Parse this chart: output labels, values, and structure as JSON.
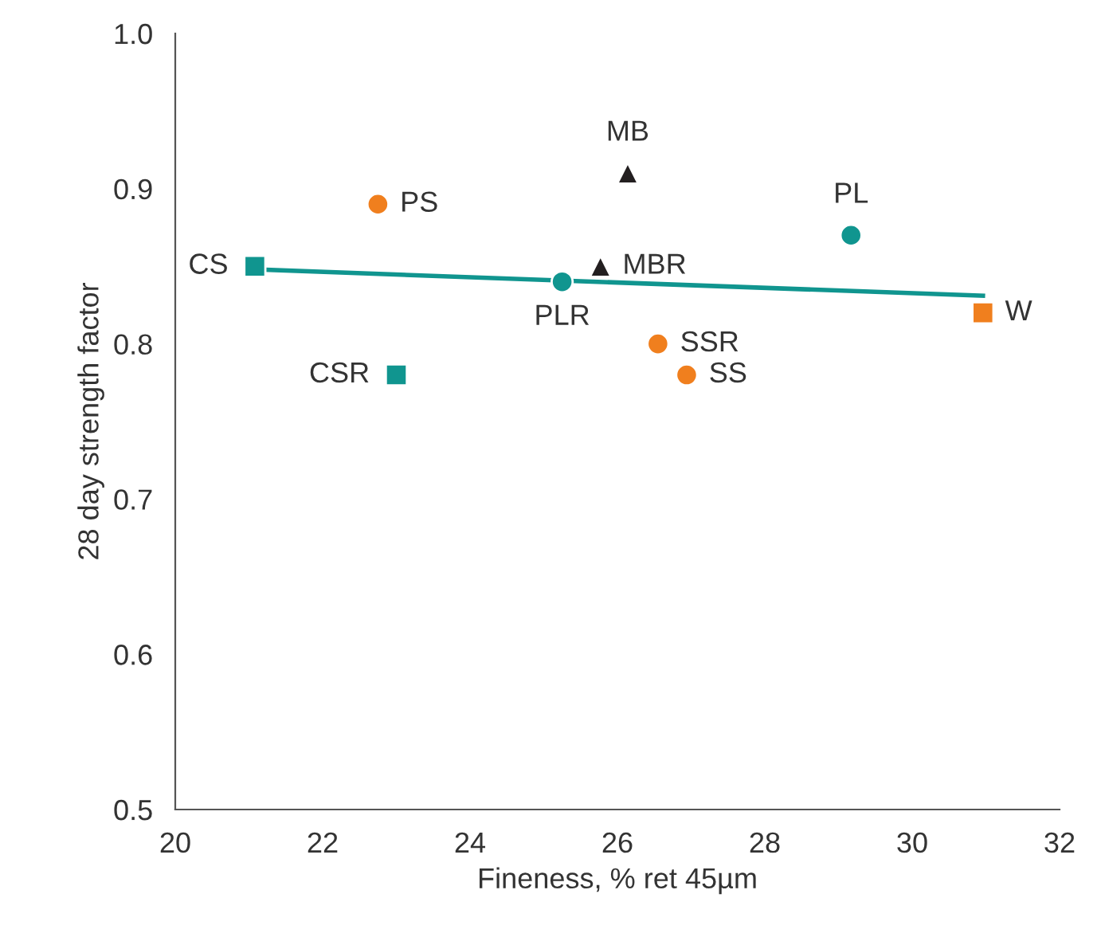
{
  "chart_data": {
    "type": "scatter",
    "xlabel": "Fineness, % ret 45µm",
    "ylabel": "28 day strength factor",
    "xlim": [
      20,
      32
    ],
    "ylim": [
      0.5,
      1.0
    ],
    "xticks": [
      20,
      22,
      24,
      26,
      28,
      30,
      32
    ],
    "yticks": [
      0.5,
      0.6,
      0.7,
      0.8,
      0.9,
      {
        "value": 1.0,
        "label": "1.0"
      }
    ],
    "grid": false,
    "legend": false,
    "series": [
      {
        "name": "CS",
        "color": "#10958f",
        "marker": "square",
        "x": [
          21.08
        ],
        "values": [
          0.85
        ]
      },
      {
        "name": "PS",
        "color": "#f07f1e",
        "marker": "circle",
        "x": [
          22.75
        ],
        "values": [
          0.89
        ]
      },
      {
        "name": "CSR",
        "color": "#10958f",
        "marker": "square",
        "x": [
          23.0
        ],
        "values": [
          0.78
        ]
      },
      {
        "name": "PLR",
        "color": "#10958f",
        "marker": "circle",
        "x": [
          25.25
        ],
        "values": [
          0.84
        ]
      },
      {
        "name": "MBR",
        "color": "#231f20",
        "marker": "triangle",
        "x": [
          25.77
        ],
        "values": [
          0.85
        ]
      },
      {
        "name": "MB",
        "color": "#231f20",
        "marker": "triangle",
        "x": [
          26.14
        ],
        "values": [
          0.91
        ]
      },
      {
        "name": "SSR",
        "color": "#f07f1e",
        "marker": "circle",
        "x": [
          26.55
        ],
        "values": [
          0.8
        ]
      },
      {
        "name": "SS",
        "color": "#f07f1e",
        "marker": "circle",
        "x": [
          26.94
        ],
        "values": [
          0.78
        ]
      },
      {
        "name": "PL",
        "color": "#10958f",
        "marker": "circle",
        "x": [
          29.17
        ],
        "values": [
          0.87
        ]
      },
      {
        "name": "W",
        "color": "#f07f1e",
        "marker": "square",
        "x": [
          30.96
        ],
        "values": [
          0.82
        ]
      },
      {
        "type": "line",
        "color": "#10958f",
        "marker": "none",
        "x": [
          21.08,
          30.96
        ],
        "values": [
          0.848,
          0.831
        ]
      }
    ]
  }
}
